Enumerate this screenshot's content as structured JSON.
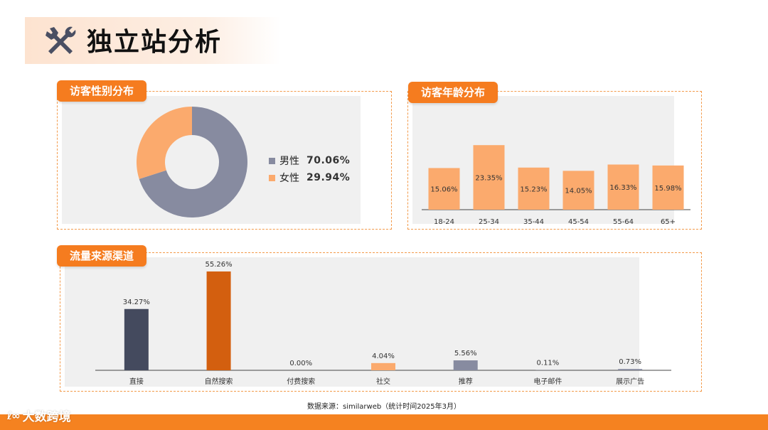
{
  "page": {
    "title": "独立站分析"
  },
  "gender": {
    "tag": "访客性别分布",
    "legend": [
      {
        "name": "男性",
        "value": "70.06%",
        "color": "#878ba0"
      },
      {
        "name": "女性",
        "value": "29.94%",
        "color": "#fbaa6d"
      }
    ]
  },
  "age": {
    "tag": "访客年龄分布"
  },
  "traffic": {
    "tag": "流量来源渠道"
  },
  "source": "数据来源：similarweb（统计时间2025年3月）",
  "brand": {
    "logo": "ℓ∞",
    "name": "大数跨境"
  },
  "chart_data": [
    {
      "type": "pie",
      "categories": [
        "男性",
        "女性"
      ],
      "values": [
        70.06,
        29.94
      ],
      "colors": [
        "#878ba0",
        "#fbaa6d"
      ],
      "donut": true
    },
    {
      "type": "bar",
      "categories": [
        "18-24",
        "25-34",
        "35-44",
        "45-54",
        "55-64",
        "65+"
      ],
      "values": [
        15.06,
        23.35,
        15.23,
        14.05,
        16.33,
        15.98
      ],
      "labels": [
        "15.06%",
        "23.35%",
        "15.23%",
        "14.05%",
        "16.33%",
        "15.98%"
      ],
      "color": "#fbaa6d",
      "ylim": [
        0,
        27
      ]
    },
    {
      "type": "bar",
      "categories": [
        "直接",
        "自然搜索",
        "付费搜索",
        "社交",
        "推荐",
        "电子邮件",
        "展示广告"
      ],
      "values": [
        34.27,
        55.26,
        0.0,
        4.04,
        5.56,
        0.11,
        0.73
      ],
      "labels": [
        "34.27%",
        "55.26%",
        "0.00%",
        "4.04%",
        "5.56%",
        "0.11%",
        "0.73%"
      ],
      "colors": [
        "#444a5e",
        "#d35f0f",
        "#878ba0",
        "#fbaa6d",
        "#878ba0",
        "#878ba0",
        "#878ba0"
      ],
      "ylim": [
        0,
        60
      ]
    }
  ]
}
